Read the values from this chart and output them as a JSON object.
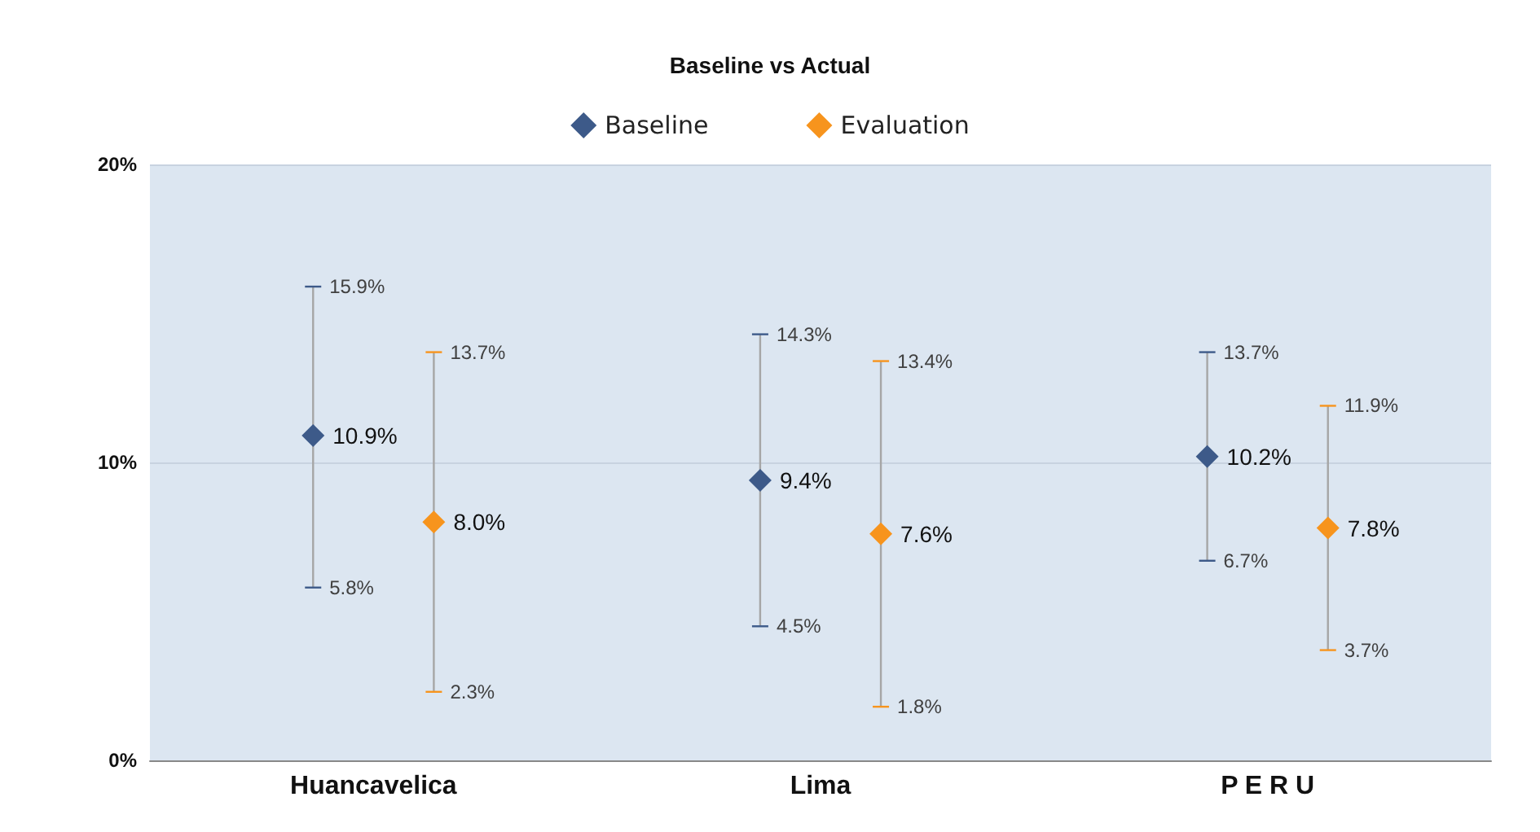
{
  "chart_data": {
    "type": "scatter",
    "title": "Baseline vs Actual",
    "categories": [
      "Huancavelica",
      "Lima",
      "P E R U"
    ],
    "series": [
      {
        "name": "Baseline",
        "color": "#3d5a89",
        "values": [
          10.9,
          9.4,
          10.2
        ],
        "errors": [
          [
            5.8,
            15.9
          ],
          [
            4.5,
            14.3
          ],
          [
            6.7,
            13.7
          ]
        ],
        "value_labels": [
          "10.9%",
          "9.4%",
          "10.2%"
        ]
      },
      {
        "name": "Evaluation",
        "color": "#f7941d",
        "values": [
          8.0,
          7.6,
          7.8
        ],
        "errors": [
          [
            2.3,
            13.7
          ],
          [
            1.8,
            13.4
          ],
          [
            3.7,
            11.9
          ]
        ],
        "value_labels": [
          "8.0%",
          "7.6%",
          "7.8%"
        ]
      }
    ],
    "annotations": [
      "15.9%",
      "5.8%",
      "13.7%",
      "2.3%",
      "14.3%",
      "4.5%",
      "13.4%",
      "1.8%",
      "13.7%",
      "6.7%",
      "11.9%",
      "3.7%"
    ],
    "ylim": [
      0,
      20
    ],
    "yticks": [
      {
        "value": 0,
        "label": "0%"
      },
      {
        "value": 10,
        "label": "10%"
      },
      {
        "value": 20,
        "label": "20%"
      }
    ],
    "grid": "y",
    "legend": "top",
    "marker": "diamond"
  }
}
